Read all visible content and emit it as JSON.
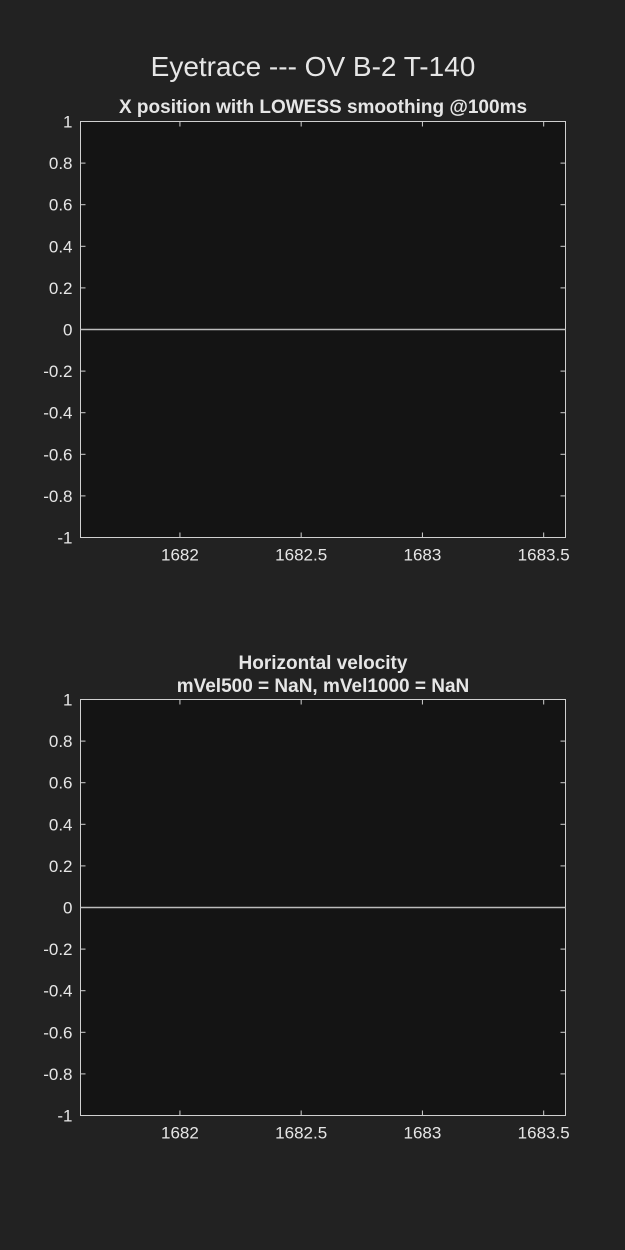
{
  "figure": {
    "title": "Eyetrace --- OV B-2 T-140",
    "background": "#222222",
    "axes_background": "#141414",
    "text_color": "#e6e6e6",
    "line_color": "#bdbdbd"
  },
  "chart_data": [
    {
      "type": "line",
      "title": "X position with LOWESS smoothing @100ms",
      "subtitle": "",
      "xlabel": "",
      "ylabel": "",
      "xlim": [
        1681.59,
        1683.59
      ],
      "ylim": [
        -1,
        1
      ],
      "x_ticks": [
        1682,
        1682.5,
        1683,
        1683.5
      ],
      "x_tick_labels": [
        "1682",
        "1682.5",
        "1683",
        "1683.5"
      ],
      "y_ticks": [
        1,
        0.8,
        0.6,
        0.4,
        0.2,
        0,
        -0.2,
        -0.4,
        -0.6,
        -0.8,
        -1
      ],
      "y_tick_labels": [
        "1",
        "0.8",
        "0.6",
        "0.4",
        "0.2",
        "0",
        "-0.2",
        "-0.4",
        "-0.6",
        "-0.8",
        "-1"
      ],
      "grid": false,
      "series": [
        {
          "x": [
            1681.59,
            1683.59
          ],
          "y": [
            0,
            0
          ]
        }
      ]
    },
    {
      "type": "line",
      "title": "Horizontal velocity",
      "subtitle": "mVel500 = NaN, mVel1000 = NaN",
      "xlabel": "",
      "ylabel": "",
      "xlim": [
        1681.59,
        1683.59
      ],
      "ylim": [
        -1,
        1
      ],
      "x_ticks": [
        1682,
        1682.5,
        1683,
        1683.5
      ],
      "x_tick_labels": [
        "1682",
        "1682.5",
        "1683",
        "1683.5"
      ],
      "y_ticks": [
        1,
        0.8,
        0.6,
        0.4,
        0.2,
        0,
        -0.2,
        -0.4,
        -0.6,
        -0.8,
        -1
      ],
      "y_tick_labels": [
        "1",
        "0.8",
        "0.6",
        "0.4",
        "0.2",
        "0",
        "-0.2",
        "-0.4",
        "-0.6",
        "-0.8",
        "-1"
      ],
      "grid": false,
      "series": [
        {
          "x": [
            1681.59,
            1683.59
          ],
          "y": [
            0,
            0
          ]
        }
      ]
    }
  ]
}
